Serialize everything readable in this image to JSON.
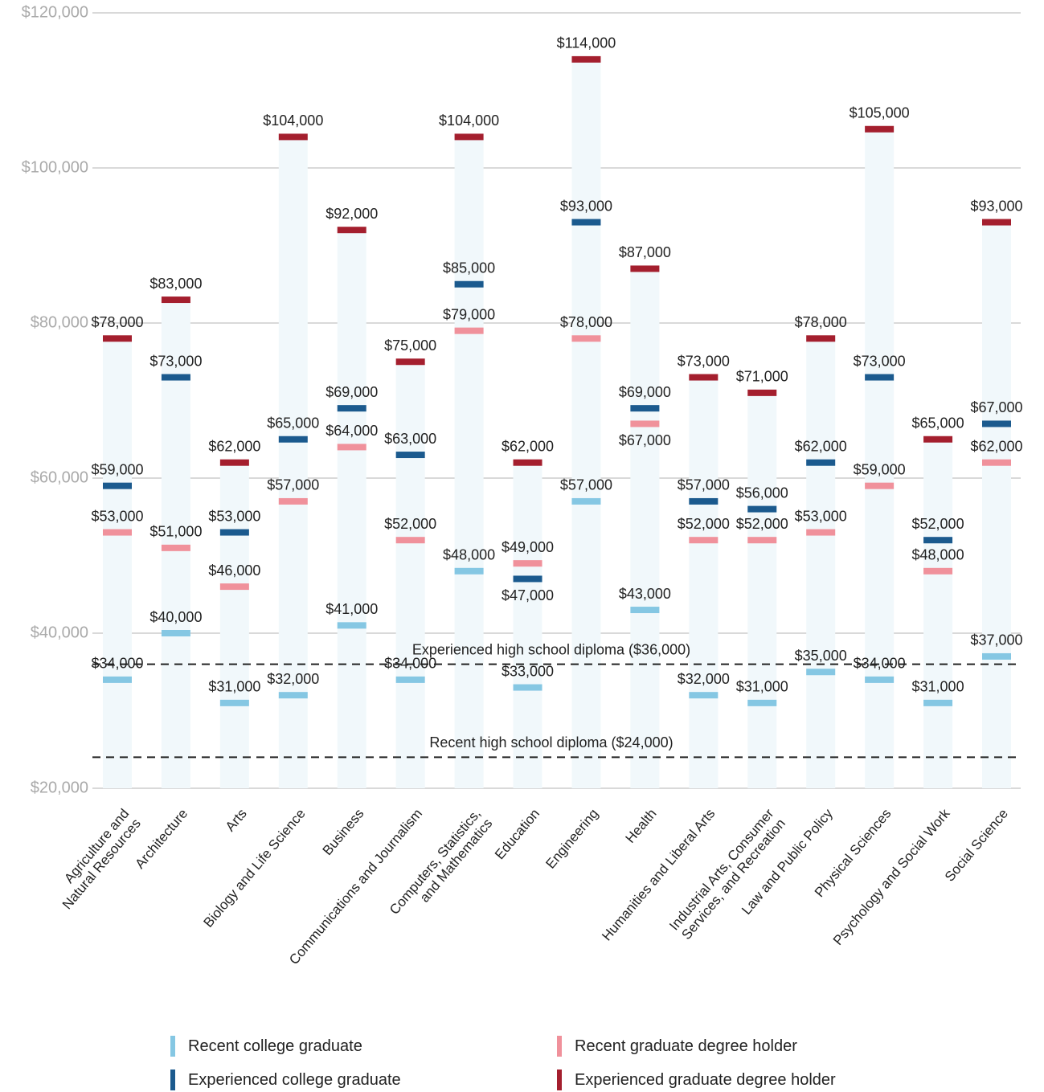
{
  "chart_data": {
    "type": "range-marker",
    "categories": [
      "Agriculture and\nNatural Resources",
      "Architecture",
      "Arts",
      "Biology and Life Science",
      "Business",
      "Communications and Journalism",
      "Computers, Statistics,\nand Mathematics",
      "Education",
      "Engineering",
      "Health",
      "Humanities and Liberal Arts",
      "Industrial Arts, Consumer\nServices, and Recreation",
      "Law and Public Policy",
      "Physical Sciences",
      "Psychology and Social Work",
      "Social Science"
    ],
    "series": [
      {
        "name": "Recent college graduate",
        "color": "#85c7e3",
        "values": [
          34000,
          40000,
          31000,
          32000,
          41000,
          34000,
          48000,
          33000,
          57000,
          43000,
          32000,
          31000,
          35000,
          34000,
          31000,
          37000
        ],
        "value_labels": [
          "$34,000",
          "$40,000",
          "$31,000",
          "$32,000",
          "$41,000",
          "$34,000",
          "$48,000",
          "$33,000",
          "$57,000",
          "$43,000",
          "$32,000",
          "$31,000",
          "$35,000",
          "$34,000",
          "$31,000",
          "$37,000"
        ]
      },
      {
        "name": "Experienced college graduate",
        "color": "#1b5a8e",
        "values": [
          59000,
          73000,
          53000,
          65000,
          69000,
          63000,
          85000,
          47000,
          93000,
          69000,
          57000,
          56000,
          62000,
          73000,
          52000,
          67000
        ],
        "value_labels": [
          "$59,000",
          "$73,000",
          "$53,000",
          "$65,000",
          "$69,000",
          "$63,000",
          "$85,000",
          "$47,000",
          "$93,000",
          "$69,000",
          "$57,000",
          "$56,000",
          "$62,000",
          "$73,000",
          "$52,000",
          "$67,000"
        ]
      },
      {
        "name": "Recent graduate degree holder",
        "color": "#f0919b",
        "values": [
          53000,
          51000,
          46000,
          57000,
          64000,
          52000,
          79000,
          49000,
          78000,
          67000,
          52000,
          52000,
          53000,
          59000,
          48000,
          62000
        ],
        "value_labels": [
          "$53,000",
          "$51,000",
          "$46,000",
          "$57,000",
          "$64,000",
          "$52,000",
          "$79,000",
          "$49,000",
          "$78,000",
          "$67,000",
          "$52,000",
          "$52,000",
          "$53,000",
          "$59,000",
          "$48,000",
          "$62,000"
        ]
      },
      {
        "name": "Experienced graduate degree holder",
        "color": "#a41f2e",
        "values": [
          78000,
          83000,
          62000,
          104000,
          92000,
          75000,
          104000,
          62000,
          114000,
          87000,
          73000,
          71000,
          78000,
          105000,
          65000,
          93000
        ],
        "value_labels": [
          "$78,000",
          "$83,000",
          "$62,000",
          "$104,000",
          "$92,000",
          "$75,000",
          "$104,000",
          "$62,000",
          "$114,000",
          "$87,000",
          "$73,000",
          "$71,000",
          "$78,000",
          "$105,000",
          "$65,000",
          "$93,000"
        ]
      }
    ],
    "reference_lines": [
      {
        "value": 36000,
        "label": "Experienced high school diploma ($36,000)"
      },
      {
        "value": 24000,
        "label": "Recent high school diploma ($24,000)"
      }
    ],
    "ylim": [
      20000,
      120000
    ],
    "yticks": [
      {
        "value": 20000,
        "label": "$20,000"
      },
      {
        "value": 40000,
        "label": "$40,000"
      },
      {
        "value": 60000,
        "label": "$60,000"
      },
      {
        "value": 80000,
        "label": "$80,000"
      },
      {
        "value": 100000,
        "label": "$100,000"
      },
      {
        "value": 120000,
        "label": "$120,000"
      }
    ],
    "grid": true,
    "range_color": "#f1f8fb"
  }
}
